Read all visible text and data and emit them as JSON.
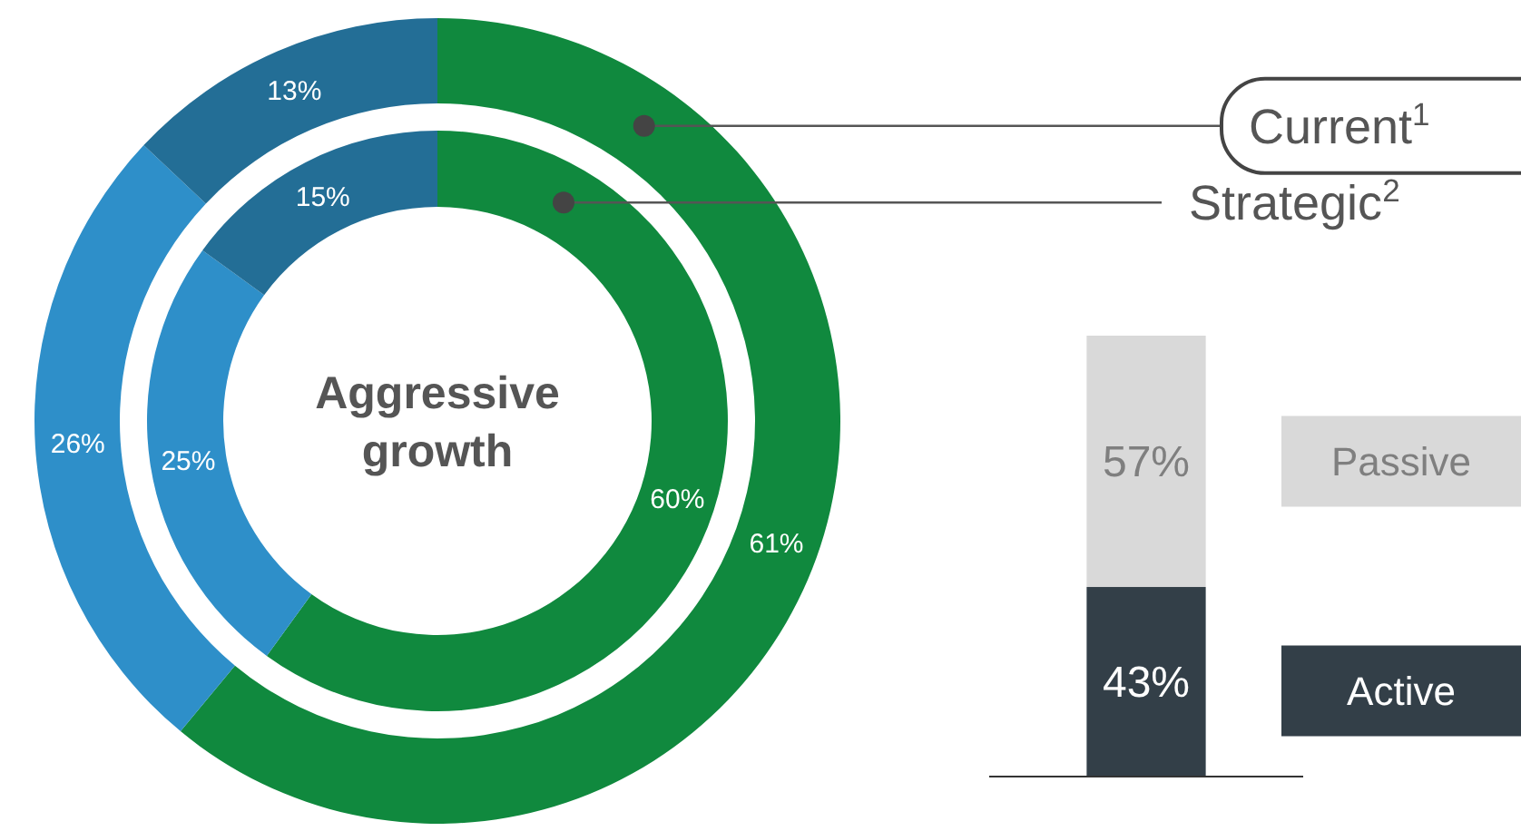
{
  "chart_data": [
    {
      "type": "donut",
      "title": "Aggressive growth",
      "categories": [
        null,
        null,
        null
      ],
      "series": [
        {
          "name": "Current$^{1}$",
          "values": [
            61,
            26,
            13
          ],
          "colors": [
            "#10893e",
            "#2e8fc9",
            "#236e96"
          ],
          "value_labels": [
            "61%",
            "26%",
            "13%"
          ]
        },
        {
          "name": "Strategic$^{2}$",
          "values": [
            60,
            25,
            15
          ],
          "colors": [
            "#10893e",
            "#2e8fc9",
            "#236e96"
          ],
          "value_labels": [
            "60%",
            "25%",
            "15%"
          ]
        }
      ]
    },
    {
      "type": "bar",
      "stacked": true,
      "categories": [
        null
      ],
      "legend": "right",
      "series": [
        {
          "name": "Active",
          "color": "#333f48",
          "values": [
            43
          ],
          "value_labels": [
            "43%"
          ]
        },
        {
          "name": "Passive",
          "color": "#d9d9d9",
          "values": [
            57
          ],
          "value_labels": [
            "57%"
          ]
        }
      ]
    }
  ]
}
